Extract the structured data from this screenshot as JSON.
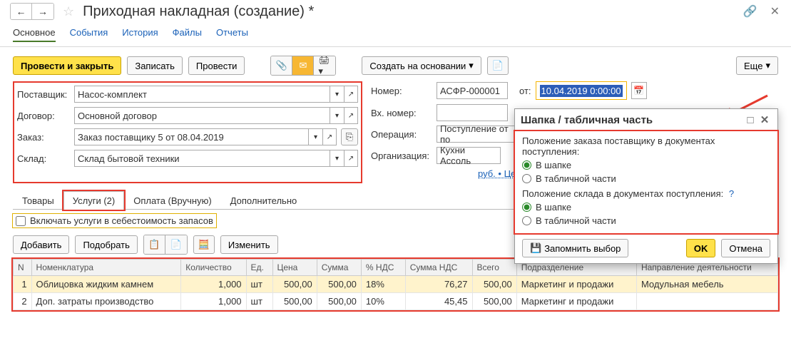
{
  "title": "Приходная накладная (создание) *",
  "navTabs": {
    "main": "Основное",
    "events": "События",
    "history": "История",
    "files": "Файлы",
    "reports": "Отчеты"
  },
  "toolbar": {
    "postClose": "Провести и закрыть",
    "save": "Записать",
    "post": "Провести",
    "createBased": "Создать на основании",
    "more": "Еще"
  },
  "fields": {
    "supplier": {
      "label": "Поставщик:",
      "value": "Насос-комплект"
    },
    "contract": {
      "label": "Договор:",
      "value": "Основной договор"
    },
    "order": {
      "label": "Заказ:",
      "value": "Заказ поставщику 5 от 08.04.2019"
    },
    "warehouse": {
      "label": "Склад:",
      "value": "Склад бытовой техники"
    },
    "number": {
      "label": "Номер:",
      "value": "АСФР-000001"
    },
    "dateFrom": "от:",
    "date": "10.04.2019  0:00:00",
    "extNumber": {
      "label": "Вх. номер:",
      "value": ""
    },
    "operation": {
      "label": "Операция:",
      "value": "Поступление от по"
    },
    "org": {
      "label": "Организация:",
      "value": "Кухни Ассоль"
    },
    "pricesLink": "руб. • Цены дл"
  },
  "tabs2": {
    "goods": "Товары",
    "services": "Услуги (2)",
    "payment": "Оплата (Вручную)",
    "extra": "Дополнительно"
  },
  "includeServices": "Включать услуги в себестоимость запасов",
  "tblToolbar": {
    "add": "Добавить",
    "pick": "Подобрать",
    "edit": "Изменить"
  },
  "columns": [
    "N",
    "Номенклатура",
    "Количество",
    "Ед.",
    "Цена",
    "Сумма",
    "% НДС",
    "Сумма НДС",
    "Всего",
    "Подразделение",
    "Направление деятельности"
  ],
  "rows": [
    {
      "n": "1",
      "name": "Облицовка жидким камнем",
      "qty": "1,000",
      "unit": "шт",
      "price": "500,00",
      "sum": "500,00",
      "vatp": "18%",
      "vats": "76,27",
      "total": "500,00",
      "dept": "Маркетинг и продажи",
      "dir": "Модульная мебель",
      "hl": true
    },
    {
      "n": "2",
      "name": "Доп. затраты производство",
      "qty": "1,000",
      "unit": "шт",
      "price": "500,00",
      "sum": "500,00",
      "vatp": "10%",
      "vats": "45,45",
      "total": "500,00",
      "dept": "Маркетинг и продажи",
      "dir": "",
      "hl": false
    }
  ],
  "popup": {
    "title": "Шапка / табличная часть",
    "q1": "Положение заказа поставщику в документах поступления:",
    "q2": "Положение склада в документах поступления:",
    "optHdr": "В шапке",
    "optTbl": "В табличной части",
    "remember": "Запомнить выбор",
    "ok": "OK",
    "cancel": "Отмена"
  },
  "colors": {
    "accentRed": "#e63a2e",
    "yellow": "#ffe14a",
    "link": "#1a61b8"
  }
}
